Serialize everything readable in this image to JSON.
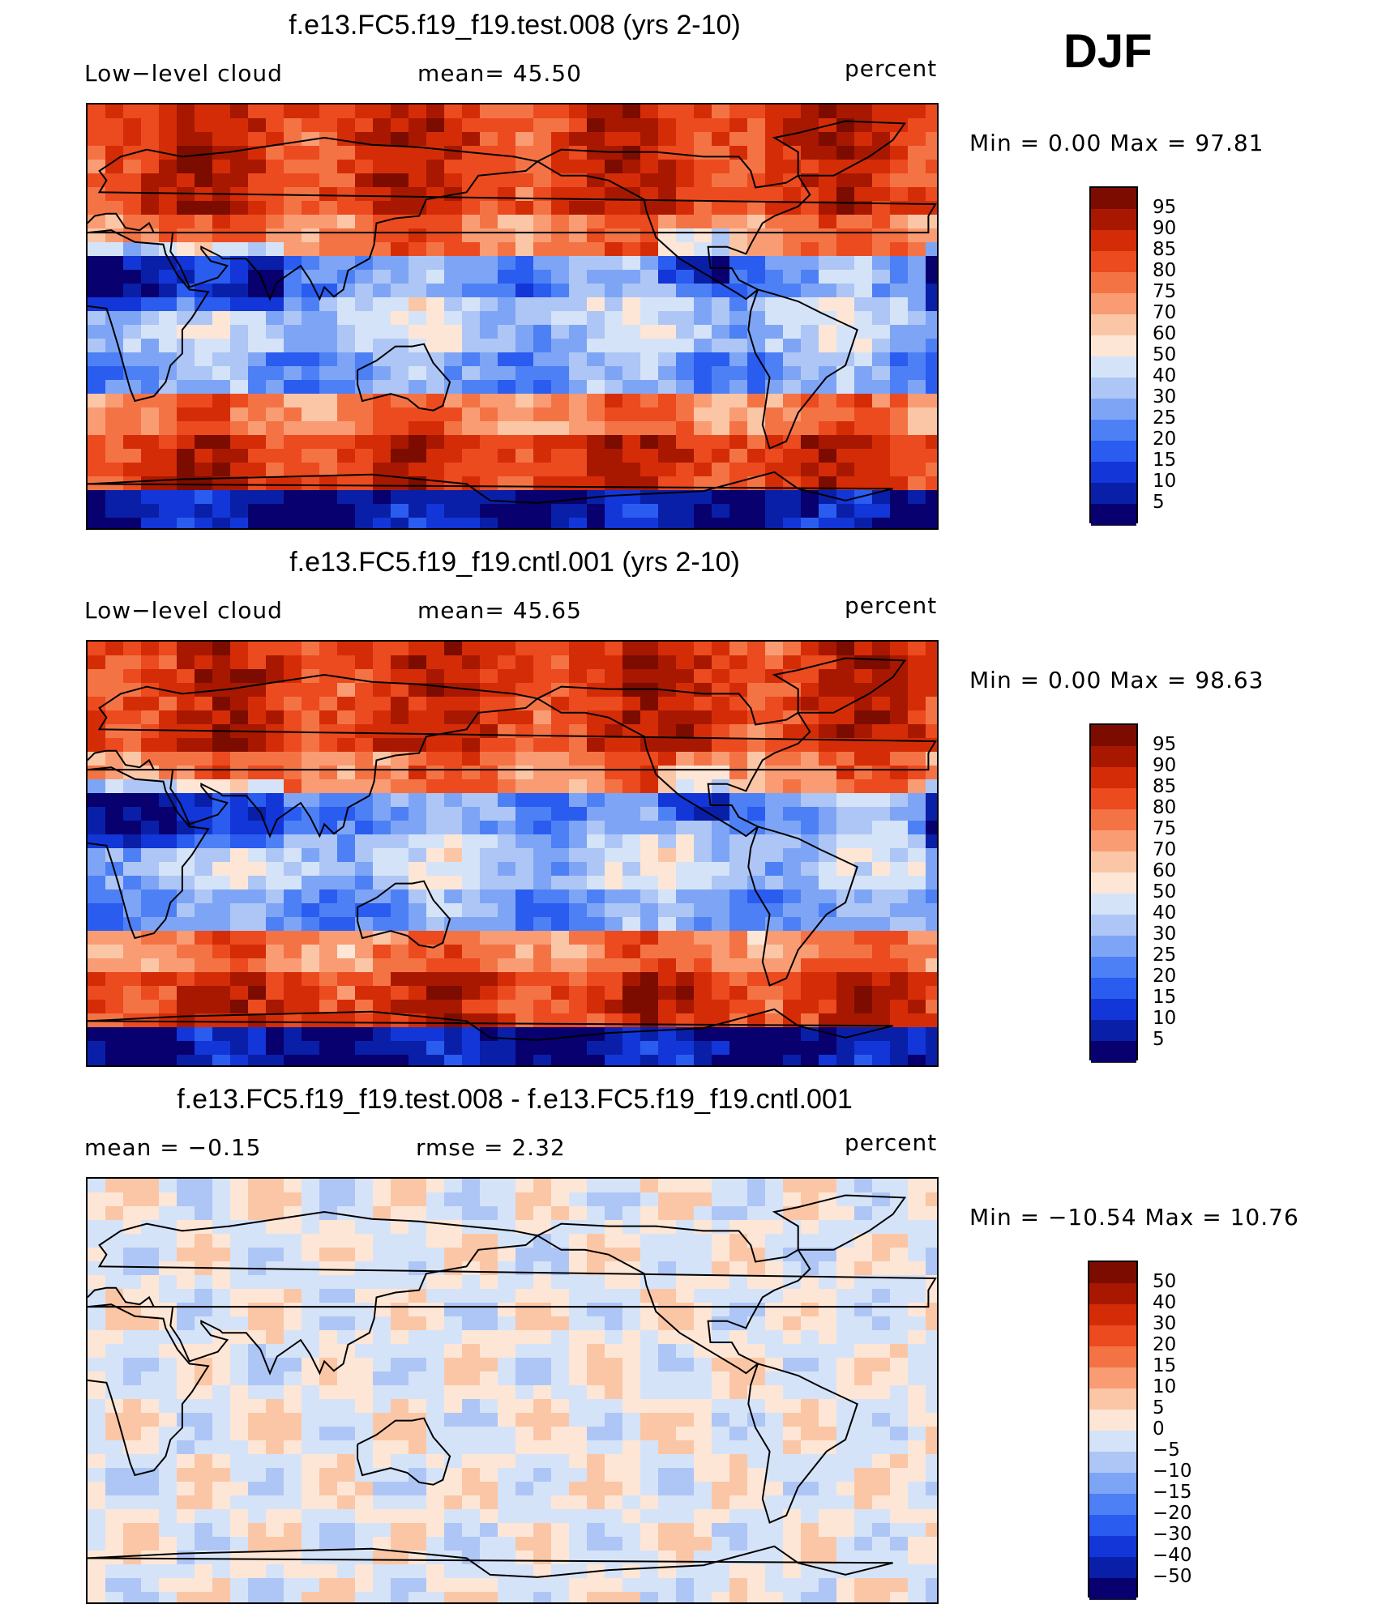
{
  "season": "DJF",
  "palette": {
    "full": [
      "#08006e",
      "#0a1fa8",
      "#1236d8",
      "#2a5cf0",
      "#4d80f5",
      "#7ea5f5",
      "#aec6f5",
      "#d5e3f8",
      "#fde6d6",
      "#fbc6a6",
      "#f99c73",
      "#f47345",
      "#ec4a1f",
      "#d52c08",
      "#a81800",
      "#7c0c00"
    ],
    "diff": [
      "#08006e",
      "#0a1fa8",
      "#1236d8",
      "#2a5cf0",
      "#4d80f5",
      "#7ea5f5",
      "#aec6f5",
      "#d5e3f8",
      "#fde6d6",
      "#fbc6a6",
      "#f99c73",
      "#f47345",
      "#ec4a1f",
      "#d52c08",
      "#a81800",
      "#7c0c00"
    ]
  },
  "panels": [
    {
      "title": "f.e13.FC5.f19_f19.test.008 (yrs 2-10)",
      "left_label": "Low−level cloud",
      "mid_label": "mean=   45.50",
      "right_label": "percent",
      "minmax": "Min  =     0.00  Max  =    97.81",
      "ticks": [
        "95",
        "90",
        "85",
        "80",
        "75",
        "70",
        "60",
        "50",
        "40",
        "30",
        "25",
        "20",
        "15",
        "10",
        "5"
      ],
      "kind": "full",
      "seed": 11
    },
    {
      "title": "f.e13.FC5.f19_f19.cntl.001 (yrs 2-10)",
      "left_label": "Low−level cloud",
      "mid_label": "mean=   45.65",
      "right_label": "percent",
      "minmax": "Min  =     0.00  Max  =    98.63",
      "ticks": [
        "95",
        "90",
        "85",
        "80",
        "75",
        "70",
        "60",
        "50",
        "40",
        "30",
        "25",
        "20",
        "15",
        "10",
        "5"
      ],
      "kind": "full",
      "seed": 29
    },
    {
      "title": "f.e13.FC5.f19_f19.test.008 - f.e13.FC5.f19_f19.cntl.001",
      "left_label": "mean  =    −0.15",
      "mid_label": "rmse  =     2.32",
      "right_label": "percent",
      "minmax": "Min  = −10.54  Max  =    10.76",
      "ticks": [
        "50",
        "40",
        "30",
        "20",
        "15",
        "10",
        "5",
        "0",
        "−5",
        "−10",
        "−15",
        "−20",
        "−30",
        "−40",
        "−50"
      ],
      "kind": "diff",
      "seed": 47
    }
  ]
}
